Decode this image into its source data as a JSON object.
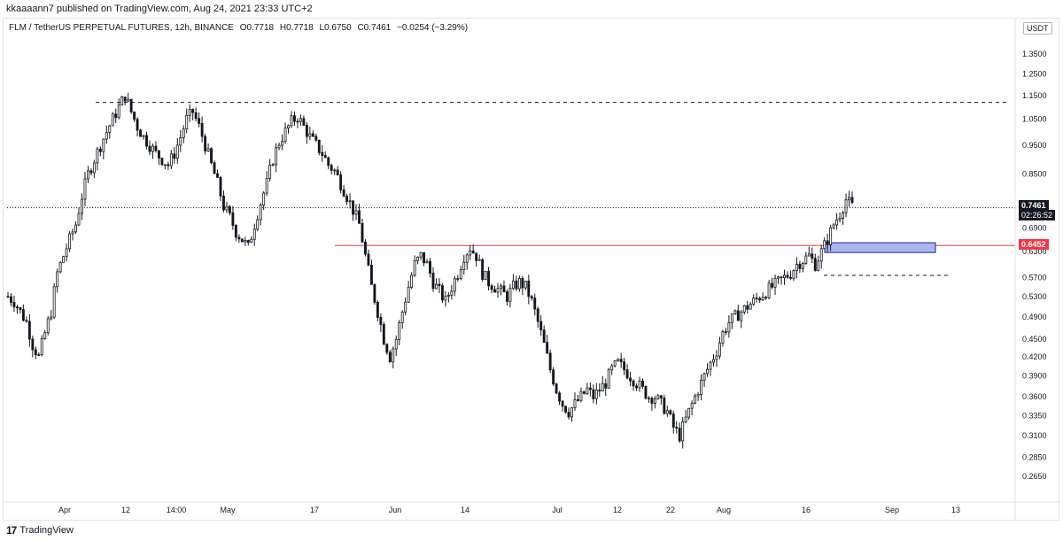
{
  "header": {
    "published_text": "kkaaaann7 published on TradingView.com, Aug 24, 2021 23:33 UTC+2"
  },
  "legend": {
    "symbol": "FLM / TetherUS PERPETUAL FUTURES, 12h, BINANCE",
    "open": "O0.7718",
    "high": "H0.7718",
    "low": "L0.6750",
    "close": "C0.7461",
    "change": "−0.0254 (−3.29%)"
  },
  "currency": "USDT",
  "price_labels": {
    "last": "0.7461",
    "timer": "02:26:52",
    "level": "0.6452"
  },
  "footer": {
    "brand": "TradingView",
    "logo_glyph": "17"
  },
  "colors": {
    "candle": "#131722",
    "red_line": "#f23645",
    "zone_fill": "#aab8f0",
    "zone_stroke": "#1a237e",
    "grid": "#ffffff",
    "dashed": "#131722"
  },
  "chart_data": {
    "type": "candlestick",
    "y_scale": "log",
    "ylim": [
      0.25,
      1.45
    ],
    "y_ticks": [
      "1.3500",
      "1.2500",
      "1.1500",
      "1.0500",
      "0.9500",
      "0.8500",
      "0.7461",
      "0.6900",
      "0.6452",
      "0.6300",
      "0.5700",
      "0.5300",
      "0.4900",
      "0.4500",
      "0.4200",
      "0.3900",
      "0.3600",
      "0.3350",
      "0.3100",
      "0.2850",
      "0.2650"
    ],
    "x_ticks": [
      "Apr",
      "12",
      "14:00",
      "May",
      "17",
      "Jun",
      "14",
      "Jul",
      "12",
      "22",
      "Aug",
      "16",
      "Sep",
      "13"
    ],
    "last_price": 0.7461,
    "horizontal_levels": [
      {
        "name": "resistance",
        "value": 1.12,
        "style": "dashed"
      },
      {
        "name": "red-level",
        "value": 0.6452,
        "style": "solid",
        "color": "red"
      },
      {
        "name": "support",
        "value": 0.575,
        "style": "dashed"
      },
      {
        "name": "last-price",
        "value": 0.7461,
        "style": "dotted"
      }
    ],
    "zone": {
      "top": 0.652,
      "bottom": 0.628
    },
    "price_path": [
      0.53,
      0.52,
      0.5,
      0.48,
      0.44,
      0.42,
      0.46,
      0.5,
      0.58,
      0.62,
      0.66,
      0.7,
      0.78,
      0.85,
      0.9,
      0.95,
      1.0,
      1.05,
      1.1,
      1.15,
      1.08,
      1.02,
      0.98,
      0.95,
      0.92,
      0.9,
      0.88,
      0.92,
      0.98,
      1.05,
      1.08,
      1.02,
      0.95,
      0.88,
      0.82,
      0.75,
      0.72,
      0.68,
      0.66,
      0.64,
      0.7,
      0.76,
      0.82,
      0.9,
      0.96,
      1.0,
      1.04,
      1.06,
      1.02,
      0.98,
      0.95,
      0.92,
      0.88,
      0.86,
      0.82,
      0.78,
      0.74,
      0.7,
      0.62,
      0.55,
      0.5,
      0.45,
      0.42,
      0.45,
      0.5,
      0.55,
      0.6,
      0.62,
      0.6,
      0.56,
      0.54,
      0.52,
      0.55,
      0.58,
      0.62,
      0.64,
      0.62,
      0.58,
      0.56,
      0.55,
      0.54,
      0.53,
      0.55,
      0.56,
      0.55,
      0.52,
      0.48,
      0.44,
      0.4,
      0.37,
      0.35,
      0.34,
      0.35,
      0.36,
      0.37,
      0.36,
      0.37,
      0.38,
      0.4,
      0.41,
      0.4,
      0.39,
      0.38,
      0.37,
      0.36,
      0.36,
      0.35,
      0.34,
      0.32,
      0.31,
      0.33,
      0.35,
      0.37,
      0.39,
      0.41,
      0.43,
      0.46,
      0.48,
      0.49,
      0.5,
      0.51,
      0.52,
      0.53,
      0.54,
      0.55,
      0.56,
      0.57,
      0.58,
      0.6,
      0.61,
      0.62,
      0.6,
      0.63,
      0.66,
      0.7,
      0.73,
      0.77,
      0.75
    ]
  }
}
